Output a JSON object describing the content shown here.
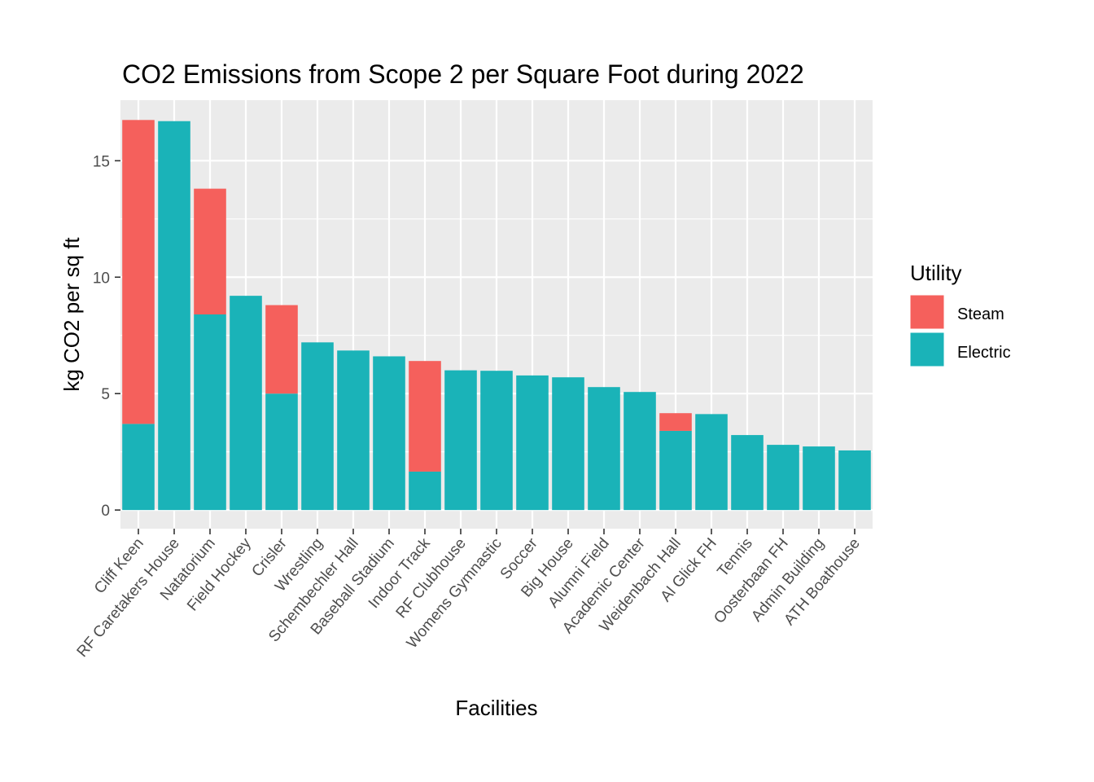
{
  "chart_data": {
    "type": "bar",
    "stacked": true,
    "title": "CO2 Emissions from Scope 2 per Square Foot during 2022",
    "xlabel": "Facilities",
    "ylabel": "kg CO2 per sq ft",
    "ylim": [
      -0.8,
      17.6
    ],
    "yticks": [
      0,
      5,
      10,
      15
    ],
    "ytick_labels": [
      "0",
      "5",
      "10",
      "15"
    ],
    "grid": true,
    "legend_position": "right",
    "legend_title": "Utility",
    "categories": [
      "Cliff Keen",
      "RF Caretakers House",
      "Natatorium",
      "Field Hockey",
      "Crisler",
      "Wrestling",
      "Schembechler Hall",
      "Baseball Stadium",
      "Indoor Track",
      "RF Clubhouse",
      "Womens Gymnastic",
      "Soccer",
      "Big House",
      "Alumni Field",
      "Academic Center",
      "Weidenbach Hall",
      "Al Glick FH",
      "Tennis",
      "Oosterbaan FH",
      "Admin Building",
      "ATH Boathouse"
    ],
    "series": [
      {
        "name": "Electric",
        "color": "#1AB3B8",
        "values": [
          3.7,
          16.7,
          8.4,
          9.2,
          5.0,
          7.2,
          6.85,
          6.6,
          1.65,
          6.0,
          5.98,
          5.78,
          5.7,
          5.28,
          5.07,
          3.4,
          4.12,
          3.22,
          2.8,
          2.73,
          2.56
        ]
      },
      {
        "name": "Steam",
        "color": "#F5605C",
        "values": [
          13.05,
          0,
          5.4,
          0,
          3.8,
          0,
          0,
          0,
          4.75,
          0,
          0,
          0,
          0,
          0,
          0,
          0.76,
          0,
          0,
          0,
          0,
          0
        ]
      }
    ]
  },
  "legend": {
    "title": "Utility",
    "items": [
      {
        "label": "Steam",
        "color": "#F5605C"
      },
      {
        "label": "Electric",
        "color": "#1AB3B8"
      }
    ]
  },
  "colors": {
    "panel_background": "#EBEBEB",
    "grid": "#FFFFFF",
    "tick_text": "#4D4D4D",
    "tick_mark": "#333333"
  }
}
